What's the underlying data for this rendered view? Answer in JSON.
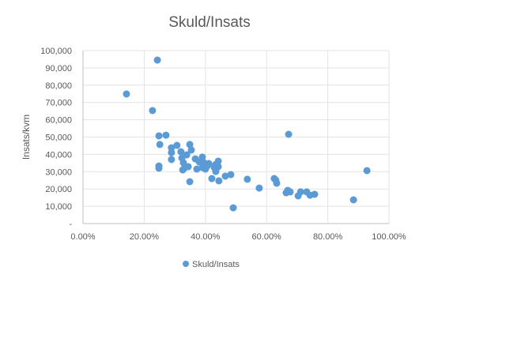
{
  "chart_data": {
    "type": "scatter",
    "title": "Skuld/Insats",
    "xlabel": "",
    "ylabel": "Insats/kvm",
    "xlim": [
      0,
      1
    ],
    "ylim": [
      0,
      100000
    ],
    "xticks": [
      "0.00%",
      "20.00%",
      "40.00%",
      "60.00%",
      "80.00%",
      "100.00%"
    ],
    "yticks": [
      "-",
      "10,000",
      "20,000",
      "30,000",
      "40,000",
      "50,000",
      "60,000",
      "70,000",
      "80,000",
      "90,000",
      "100,000"
    ],
    "grid": true,
    "legend_position": "bottom",
    "color": "#5B9BD5",
    "series": [
      {
        "name": "Skuld/Insats",
        "points": [
          [
            0.142,
            74900
          ],
          [
            0.243,
            94500
          ],
          [
            0.227,
            65300
          ],
          [
            0.248,
            50700
          ],
          [
            0.251,
            45700
          ],
          [
            0.271,
            51100
          ],
          [
            0.248,
            33300
          ],
          [
            0.248,
            32000
          ],
          [
            0.289,
            43800
          ],
          [
            0.289,
            41000
          ],
          [
            0.289,
            37000
          ],
          [
            0.307,
            45200
          ],
          [
            0.32,
            41500
          ],
          [
            0.323,
            37900
          ],
          [
            0.328,
            35200
          ],
          [
            0.331,
            32000
          ],
          [
            0.326,
            31000
          ],
          [
            0.339,
            39700
          ],
          [
            0.349,
            45700
          ],
          [
            0.354,
            42500
          ],
          [
            0.349,
            24200
          ],
          [
            0.344,
            32900
          ],
          [
            0.367,
            37400
          ],
          [
            0.372,
            31500
          ],
          [
            0.38,
            35600
          ],
          [
            0.39,
            38400
          ],
          [
            0.39,
            32400
          ],
          [
            0.395,
            35200
          ],
          [
            0.4,
            31500
          ],
          [
            0.406,
            33300
          ],
          [
            0.411,
            34700
          ],
          [
            0.421,
            26000
          ],
          [
            0.429,
            32400
          ],
          [
            0.434,
            34200
          ],
          [
            0.434,
            30100
          ],
          [
            0.442,
            36100
          ],
          [
            0.442,
            32900
          ],
          [
            0.444,
            24700
          ],
          [
            0.465,
            27400
          ],
          [
            0.483,
            28300
          ],
          [
            0.491,
            9100
          ],
          [
            0.537,
            25600
          ],
          [
            0.576,
            20500
          ],
          [
            0.625,
            26000
          ],
          [
            0.63,
            25100
          ],
          [
            0.633,
            23300
          ],
          [
            0.672,
            51600
          ],
          [
            0.664,
            17800
          ],
          [
            0.669,
            19200
          ],
          [
            0.677,
            18300
          ],
          [
            0.703,
            16000
          ],
          [
            0.711,
            18300
          ],
          [
            0.731,
            18300
          ],
          [
            0.742,
            16400
          ],
          [
            0.757,
            16900
          ],
          [
            0.884,
            13700
          ],
          [
            0.928,
            30600
          ]
        ]
      }
    ]
  }
}
